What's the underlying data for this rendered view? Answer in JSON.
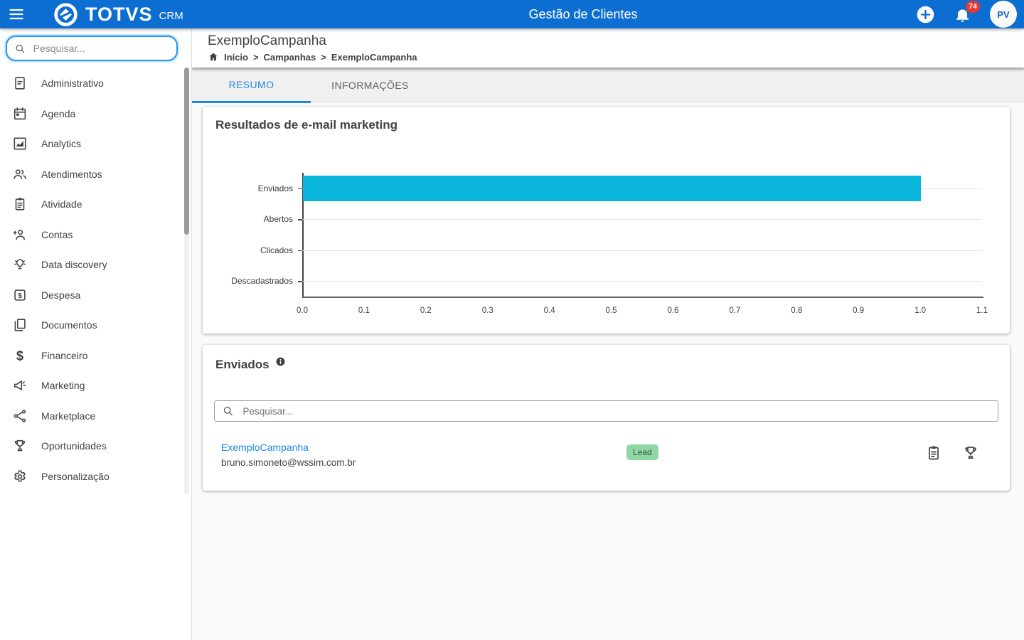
{
  "colors": {
    "header_blue": "#0d6ed2",
    "active_tab_blue": "#1e88e5",
    "bar_cyan": "#0ab5db",
    "badge_green_bg": "#8fd7a3",
    "badge_green_text": "#33523e",
    "notification_red": "#e53935",
    "icon_gray": "#424242"
  },
  "appbar": {
    "brand": "TOTVS",
    "brand_suffix": "CRM",
    "title": "Gestão de Clientes",
    "notification_count": "74",
    "avatar_initials": "PV",
    "icons": [
      "menu-icon",
      "totvs-logo",
      "add-icon",
      "bell-icon"
    ]
  },
  "sidebar": {
    "search_placeholder": "Pesquisar...",
    "items": [
      {
        "label": "Administrativo",
        "icon": "document-icon"
      },
      {
        "label": "Agenda",
        "icon": "calendar-icon"
      },
      {
        "label": "Analytics",
        "icon": "analytics-icon"
      },
      {
        "label": "Atendimentos",
        "icon": "people-icon"
      },
      {
        "label": "Atividade",
        "icon": "clipboard-icon"
      },
      {
        "label": "Contas",
        "icon": "person-add-icon"
      },
      {
        "label": "Data discovery",
        "icon": "lightbulb-icon"
      },
      {
        "label": "Despesa",
        "icon": "expense-icon"
      },
      {
        "label": "Documentos",
        "icon": "copy-icon"
      },
      {
        "label": "Financeiro",
        "icon": "dollar-icon"
      },
      {
        "label": "Marketing",
        "icon": "megaphone-icon"
      },
      {
        "label": "Marketplace",
        "icon": "share-icon"
      },
      {
        "label": "Oportunidades",
        "icon": "trophy-icon"
      },
      {
        "label": "Personalização",
        "icon": "gear-icon"
      }
    ]
  },
  "page": {
    "title": "ExemploCampanha",
    "breadcrumb": [
      "Início",
      "Campanhas",
      "ExemploCampanha"
    ],
    "tabs": [
      {
        "label": "RESUMO",
        "active": true
      },
      {
        "label": "INFORMAÇÕES",
        "active": false
      }
    ]
  },
  "chart_data": {
    "type": "bar",
    "orientation": "horizontal",
    "title": "Resultados de e-mail marketing",
    "categories": [
      "Enviados",
      "Abertos",
      "Clicados",
      "Descadastrados"
    ],
    "values": [
      1.0,
      0,
      0,
      0
    ],
    "xlim": [
      0,
      1.1
    ],
    "xticks": [
      "0.0",
      "0.1",
      "0.2",
      "0.3",
      "0.4",
      "0.5",
      "0.6",
      "0.7",
      "0.8",
      "0.9",
      "1.0",
      "1.1"
    ],
    "bar_color": "#0ab5db",
    "grid": true,
    "legend": false
  },
  "enviados_card": {
    "title": "Enviados",
    "info_icon": "info-icon",
    "search_placeholder": "Pesquisar...",
    "rows": [
      {
        "name": "ExemploCampanha",
        "email": "bruno.simoneto@wssim.com.br",
        "badge": "Lead",
        "actions": [
          "clipboard-icon",
          "trophy-icon"
        ]
      }
    ]
  }
}
